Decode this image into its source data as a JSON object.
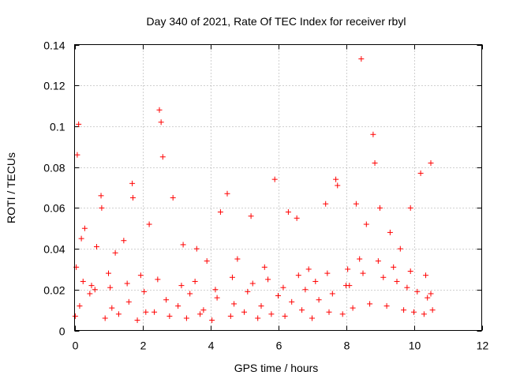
{
  "chart_data": {
    "type": "scatter",
    "title": "Day 340 of 2021, Rate Of TEC Index for receiver rbyl",
    "xlabel": "GPS time / hours",
    "ylabel": "ROTI / TECUs",
    "xlim": [
      0,
      12
    ],
    "ylim": [
      0,
      0.14
    ],
    "xticks": [
      0,
      2,
      4,
      6,
      8,
      10,
      12
    ],
    "yticks": [
      0,
      0.02,
      0.04,
      0.06,
      0.08,
      0.1,
      0.12,
      0.14
    ],
    "xtick_labels": [
      "0",
      "2",
      "4",
      "6",
      "8",
      "10",
      "12"
    ],
    "ytick_labels": [
      "0",
      "0.02",
      "0.04",
      "0.06",
      "0.08",
      "0.1",
      "0.12",
      "0.14"
    ],
    "grid": true,
    "marker": "+",
    "color": "#ff0000",
    "x": [
      0.05,
      0.08,
      0.12,
      0.2,
      0.3,
      0.5,
      0.65,
      0.78,
      0.8,
      1.0,
      1.2,
      1.45,
      1.7,
      1.72,
      1.95,
      2.2,
      2.5,
      2.55,
      2.6,
      2.9,
      3.2,
      3.6,
      3.9,
      4.3,
      4.5,
      4.8,
      5.2,
      5.6,
      5.9,
      6.3,
      6.55,
      6.9,
      7.4,
      7.7,
      7.75,
      8.0,
      8.3,
      8.45,
      8.6,
      8.8,
      8.85,
      9.0,
      9.3,
      9.6,
      9.9,
      10.2,
      10.5,
      0.15,
      0.45,
      1.1,
      1.6,
      2.1,
      2.7,
      3.05,
      3.4,
      3.8,
      4.2,
      4.7,
      5.1,
      5.5,
      6.0,
      6.4,
      6.8,
      7.2,
      7.6,
      8.1,
      8.5,
      9.1,
      9.5,
      9.8,
      10.1,
      10.4,
      10.55,
      0.02,
      0.9,
      1.3,
      1.85,
      2.35,
      2.8,
      3.3,
      3.7,
      4.05,
      4.6,
      5.0,
      5.4,
      5.8,
      6.2,
      6.7,
      7.0,
      7.5,
      7.9,
      8.2,
      8.7,
      9.2,
      9.7,
      10.0,
      10.3,
      0.25,
      0.6,
      1.05,
      1.55,
      2.05,
      2.45,
      3.15,
      3.55,
      4.15,
      4.65,
      5.25,
      5.7,
      6.15,
      6.6,
      7.1,
      7.45,
      8.05,
      8.4,
      8.95,
      9.4,
      9.9,
      10.35,
      10.5
    ],
    "y": [
      0.031,
      0.086,
      0.101,
      0.045,
      0.05,
      0.022,
      0.041,
      0.066,
      0.06,
      0.028,
      0.038,
      0.044,
      0.072,
      0.065,
      0.027,
      0.052,
      0.108,
      0.102,
      0.085,
      0.065,
      0.042,
      0.04,
      0.034,
      0.058,
      0.067,
      0.035,
      0.056,
      0.031,
      0.074,
      0.058,
      0.055,
      0.03,
      0.062,
      0.074,
      0.071,
      0.022,
      0.062,
      0.133,
      0.052,
      0.096,
      0.082,
      0.06,
      0.048,
      0.04,
      0.06,
      0.077,
      0.082,
      0.012,
      0.018,
      0.011,
      0.014,
      0.009,
      0.015,
      0.012,
      0.018,
      0.01,
      0.016,
      0.013,
      0.019,
      0.012,
      0.017,
      0.014,
      0.02,
      0.015,
      0.018,
      0.022,
      0.028,
      0.026,
      0.024,
      0.021,
      0.019,
      0.016,
      0.01,
      0.007,
      0.006,
      0.008,
      0.005,
      0.009,
      0.007,
      0.006,
      0.008,
      0.005,
      0.007,
      0.009,
      0.006,
      0.008,
      0.007,
      0.01,
      0.006,
      0.009,
      0.008,
      0.011,
      0.013,
      0.012,
      0.01,
      0.009,
      0.008,
      0.024,
      0.02,
      0.021,
      0.023,
      0.019,
      0.025,
      0.022,
      0.024,
      0.02,
      0.026,
      0.023,
      0.025,
      0.021,
      0.027,
      0.024,
      0.028,
      0.03,
      0.035,
      0.034,
      0.031,
      0.029,
      0.027,
      0.018
    ]
  }
}
